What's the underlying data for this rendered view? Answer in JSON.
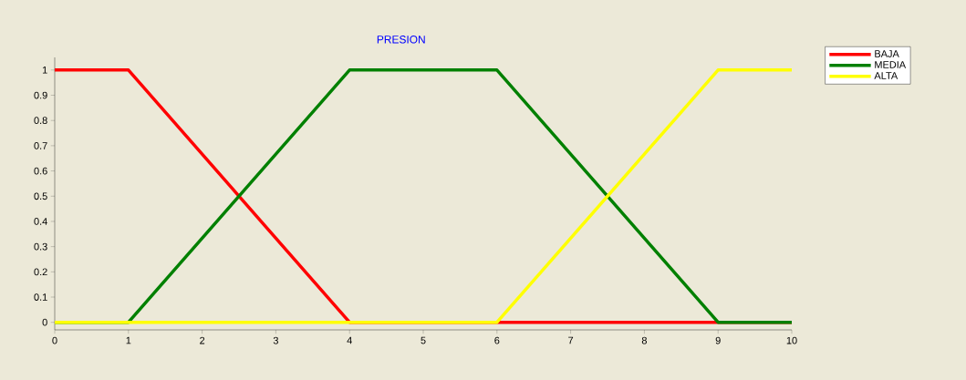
{
  "chart_data": {
    "type": "line",
    "title": "PRESION",
    "xlim": [
      0,
      10
    ],
    "ylim": [
      -0.03,
      1.05
    ],
    "xticks": [
      0,
      1,
      2,
      3,
      4,
      5,
      6,
      7,
      8,
      9,
      10
    ],
    "yticks": [
      0,
      0.1,
      0.2,
      0.3,
      0.4,
      0.5,
      0.6,
      0.7,
      0.8,
      0.9,
      1
    ],
    "grid": false,
    "legend": "top right",
    "series": [
      {
        "name": "BAJA",
        "color": "#ff0000",
        "x": [
          0,
          1,
          4,
          10
        ],
        "values": [
          1,
          1,
          0,
          0
        ]
      },
      {
        "name": "MEDIA",
        "color": "#008000",
        "x": [
          0,
          1,
          4,
          6,
          9,
          10
        ],
        "values": [
          0,
          0,
          1,
          1,
          0,
          0
        ]
      },
      {
        "name": "ALTA",
        "color": "#ffff00",
        "x": [
          0,
          6,
          9,
          10
        ],
        "values": [
          0,
          0,
          1,
          1
        ]
      }
    ]
  }
}
